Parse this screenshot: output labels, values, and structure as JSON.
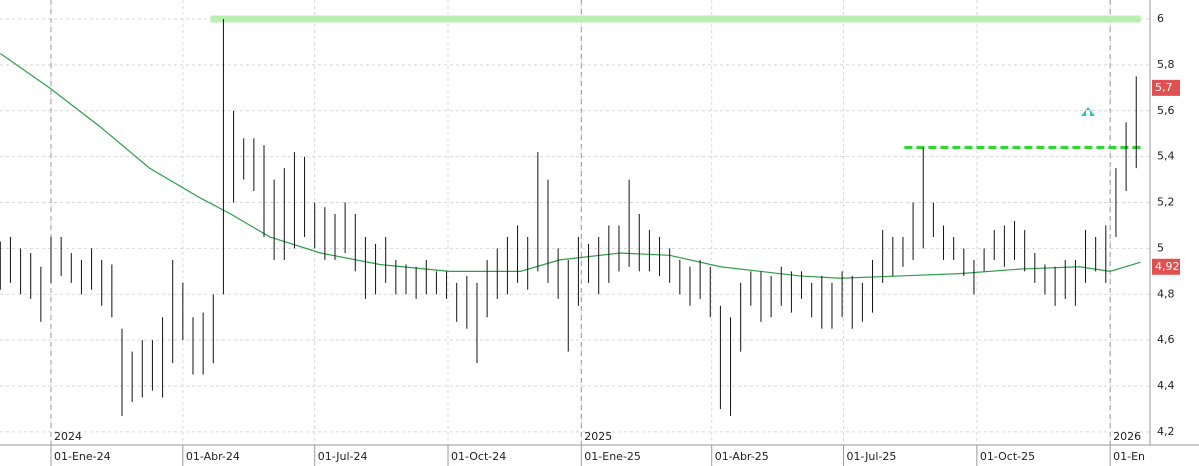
{
  "chart_data": {
    "type": "ohlc",
    "xlim": [
      -35.2,
      758.5
    ],
    "ylim": [
      4.143,
      6.083
    ],
    "xticks": [
      {
        "value": 0,
        "label": "01-Ene-24"
      },
      {
        "value": 91,
        "label": "01-Abr-24"
      },
      {
        "value": 182,
        "label": "01-Jul-24"
      },
      {
        "value": 274,
        "label": "01-Oct-24"
      },
      {
        "value": 366,
        "label": "01-Ene-25"
      },
      {
        "value": 456,
        "label": "01-Abr-25"
      },
      {
        "value": 547,
        "label": "01-Jul-25"
      },
      {
        "value": 639,
        "label": "01-Oct-25"
      },
      {
        "value": 731,
        "label": "01-En"
      }
    ],
    "year_ticks": [
      {
        "value": 0,
        "label": "2024"
      },
      {
        "value": 366,
        "label": "2025"
      },
      {
        "value": 731,
        "label": "2026"
      }
    ],
    "yticks": [
      {
        "value": 4.2,
        "label": "4,2"
      },
      {
        "value": 4.4,
        "label": "4,4"
      },
      {
        "value": 4.6,
        "label": "4,6"
      },
      {
        "value": 4.8,
        "label": "4,8"
      },
      5,
      {
        "value": 5.2,
        "label": "5,2"
      },
      {
        "value": 5.4,
        "label": "5,4"
      },
      {
        "value": 5.6,
        "label": "5,6"
      },
      {
        "value": 5.8,
        "label": "5,8"
      },
      6
    ],
    "grid": true,
    "ohlc": {
      "color": "#111111",
      "x": [
        -35,
        -28,
        -21,
        -14,
        -7,
        0,
        7,
        14,
        21,
        28,
        35,
        42,
        49,
        56,
        63,
        70,
        77,
        84,
        91,
        98,
        105,
        112,
        119,
        126,
        133,
        140,
        147,
        154,
        161,
        168,
        175,
        182,
        189,
        196,
        203,
        210,
        217,
        224,
        231,
        238,
        245,
        252,
        259,
        266,
        273,
        280,
        287,
        294,
        301,
        308,
        315,
        322,
        329,
        336,
        343,
        350,
        357,
        364,
        371,
        378,
        385,
        392,
        399,
        406,
        413,
        420,
        427,
        434,
        441,
        448,
        455,
        462,
        469,
        476,
        483,
        490,
        497,
        504,
        511,
        518,
        525,
        532,
        539,
        546,
        553,
        560,
        567,
        574,
        581,
        588,
        595,
        602,
        609,
        616,
        623,
        630,
        637,
        644,
        651,
        658,
        665,
        672,
        679,
        686,
        693,
        700,
        707,
        714,
        721,
        728,
        735,
        742,
        749
      ],
      "low": [
        4.82,
        4.85,
        4.8,
        4.78,
        4.68,
        4.85,
        4.88,
        4.85,
        4.8,
        4.82,
        4.75,
        4.7,
        4.27,
        4.33,
        4.35,
        4.38,
        4.35,
        4.5,
        4.6,
        4.45,
        4.45,
        4.5,
        4.8,
        5.2,
        5.3,
        5.25,
        5.05,
        4.95,
        4.95,
        5.0,
        5.05,
        5.0,
        4.95,
        4.95,
        4.98,
        4.9,
        4.78,
        4.8,
        4.85,
        4.8,
        4.8,
        4.78,
        4.8,
        4.8,
        4.78,
        4.68,
        4.65,
        4.5,
        4.7,
        4.78,
        4.8,
        4.85,
        4.82,
        4.9,
        4.85,
        4.78,
        4.55,
        4.75,
        4.85,
        4.8,
        4.85,
        4.9,
        4.92,
        4.9,
        4.9,
        4.88,
        4.85,
        4.8,
        4.75,
        4.78,
        4.7,
        4.3,
        4.27,
        4.55,
        4.75,
        4.68,
        4.7,
        4.75,
        4.72,
        4.78,
        4.7,
        4.65,
        4.65,
        4.7,
        4.65,
        4.68,
        4.72,
        4.85,
        4.88,
        4.92,
        4.95,
        5.0,
        5.05,
        4.95,
        4.95,
        4.88,
        4.8,
        4.9,
        4.95,
        4.92,
        4.95,
        4.9,
        4.85,
        4.8,
        4.75,
        4.78,
        4.75,
        4.85,
        4.9,
        4.85,
        5.05,
        5.25,
        5.35
      ],
      "high": [
        5.03,
        5.05,
        5.0,
        4.98,
        4.92,
        5.05,
        5.05,
        4.98,
        4.95,
        5.0,
        4.95,
        4.93,
        4.65,
        4.55,
        4.6,
        4.6,
        4.7,
        4.95,
        4.85,
        4.7,
        4.72,
        4.8,
        6.0,
        5.6,
        5.48,
        5.48,
        5.45,
        5.3,
        5.35,
        5.42,
        5.4,
        5.2,
        5.18,
        5.15,
        5.2,
        5.15,
        5.05,
        5.02,
        5.05,
        4.95,
        4.93,
        4.92,
        4.95,
        4.9,
        4.9,
        4.85,
        4.88,
        4.85,
        4.95,
        5.0,
        5.05,
        5.1,
        5.05,
        5.42,
        5.3,
        5.0,
        4.95,
        5.05,
        5.02,
        5.05,
        5.1,
        5.1,
        5.3,
        5.15,
        5.08,
        5.05,
        5.0,
        4.95,
        4.92,
        4.95,
        4.92,
        4.75,
        4.7,
        4.85,
        4.9,
        4.9,
        4.88,
        4.92,
        4.9,
        4.9,
        4.85,
        4.88,
        4.85,
        4.9,
        4.88,
        4.85,
        4.95,
        5.08,
        5.05,
        5.05,
        5.2,
        5.44,
        5.2,
        5.1,
        5.05,
        5.0,
        4.95,
        5.0,
        5.08,
        5.1,
        5.12,
        5.08,
        4.98,
        4.93,
        4.92,
        4.95,
        4.95,
        5.08,
        5.05,
        5.1,
        5.35,
        5.55,
        5.75
      ]
    },
    "moving_average": {
      "color": "#2e9e4a",
      "x": [
        -35,
        -1,
        34,
        68,
        103,
        124,
        151,
        186,
        227,
        275,
        324,
        351,
        393,
        427,
        462,
        517,
        545,
        586,
        627,
        669,
        710,
        731,
        752
      ],
      "values": [
        5.85,
        5.7,
        5.53,
        5.35,
        5.22,
        5.15,
        5.05,
        4.98,
        4.93,
        4.9,
        4.9,
        4.95,
        4.98,
        4.97,
        4.92,
        4.88,
        4.87,
        4.88,
        4.89,
        4.91,
        4.92,
        4.9,
        4.94
      ]
    },
    "levels": [
      {
        "value": 6.0,
        "x_range": [
          110,
          752
        ],
        "color": "#b8f0b0",
        "style": "solid"
      },
      {
        "value": 5.44,
        "x_range": [
          589,
          752
        ],
        "color": "#2ed82e",
        "style": "dashed"
      }
    ],
    "price_tags": [
      {
        "value": 5.7,
        "label": "5,7",
        "color": "#e05050"
      },
      {
        "value": 4.92,
        "label": "4,92",
        "color": "#e05050"
      }
    ]
  }
}
